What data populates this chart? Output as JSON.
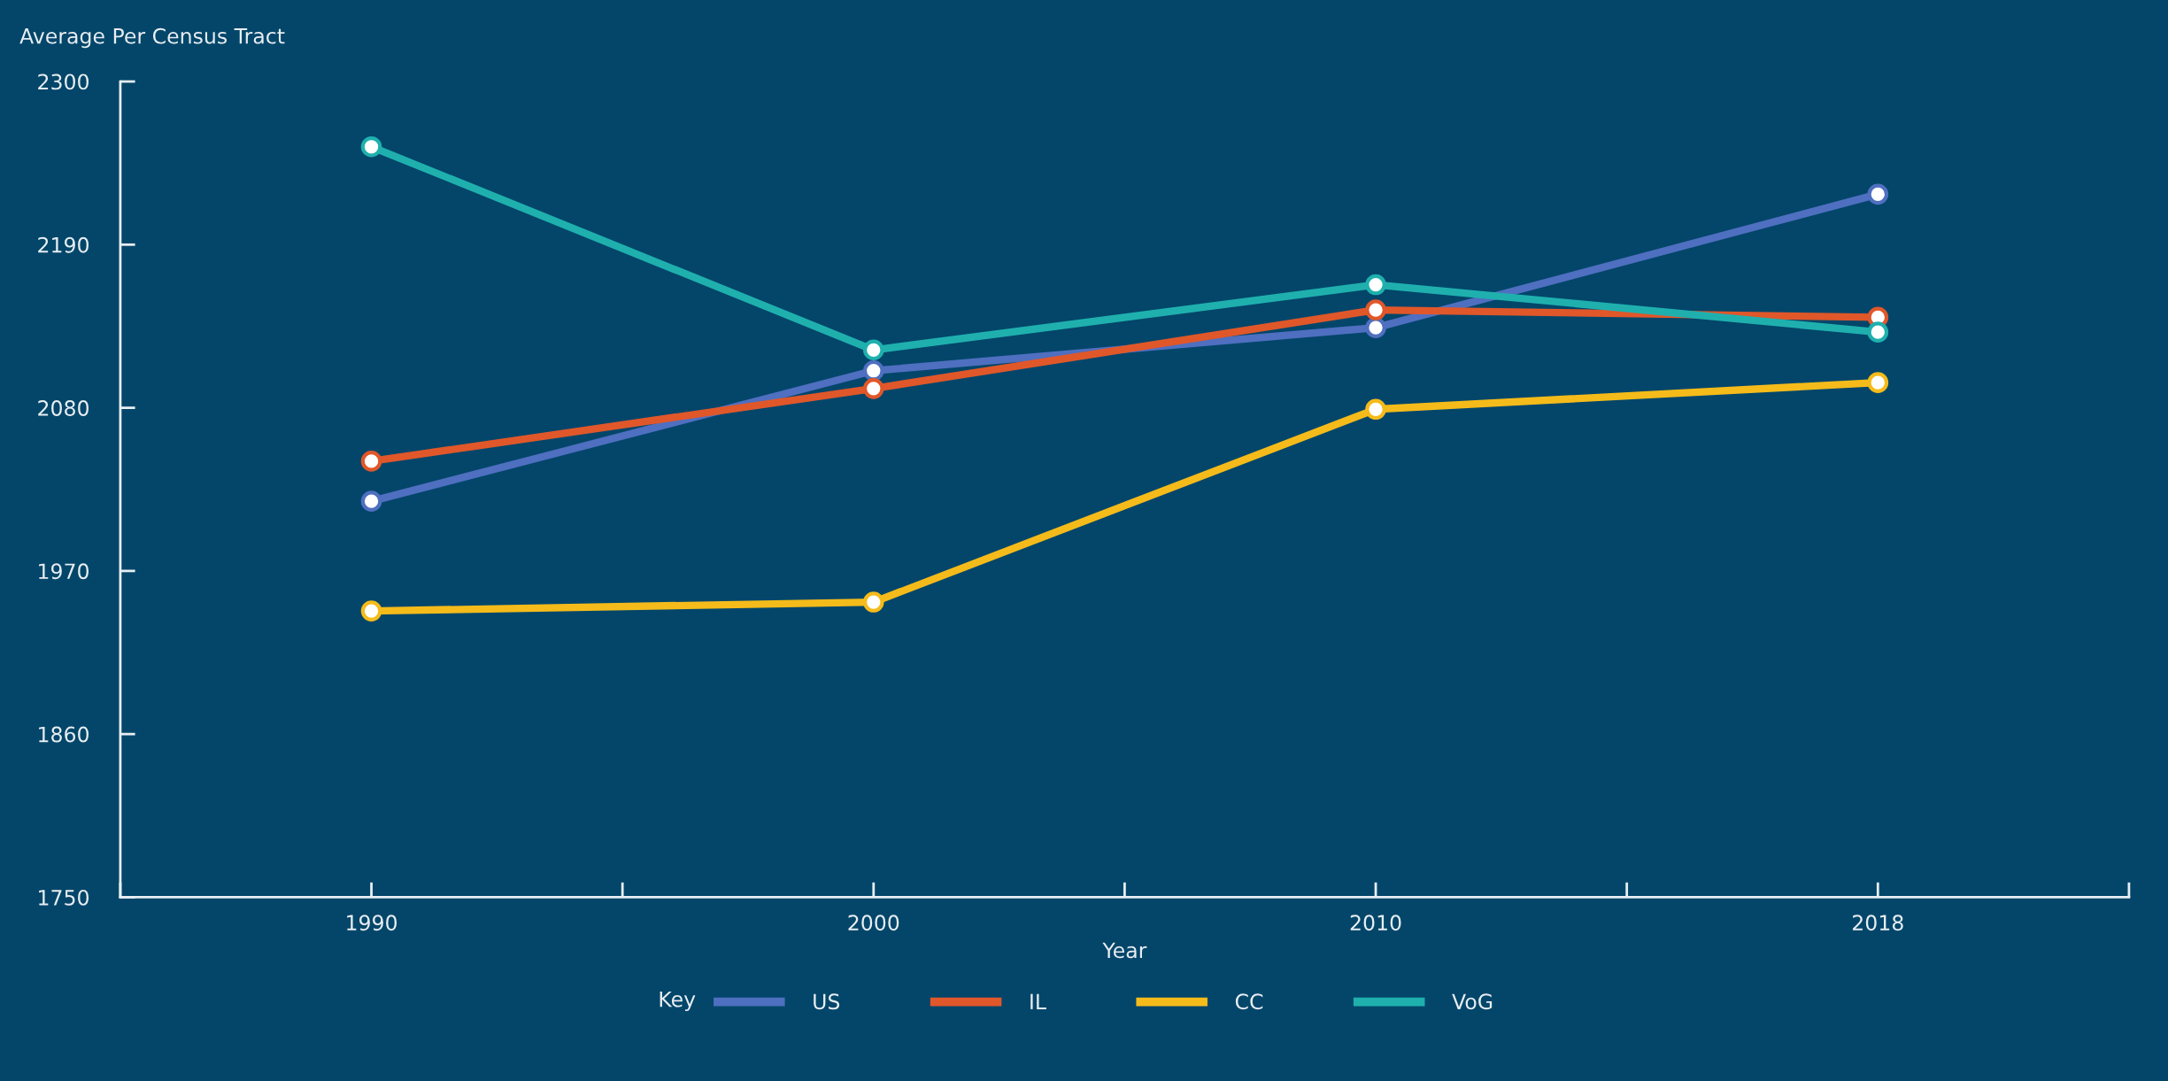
{
  "chart_data": {
    "type": "line",
    "ylabel": "Average Per Census Tract",
    "xlabel": "Year",
    "legend_title": "Key",
    "categories": [
      "1990",
      "2000",
      "2010",
      "2018"
    ],
    "series": [
      {
        "name": "US",
        "color": "#4f6fc0",
        "values": [
          2017,
          2105,
          2134,
          2224
        ]
      },
      {
        "name": "IL",
        "color": "#e0572a",
        "values": [
          2044,
          2093,
          2146,
          2141
        ]
      },
      {
        "name": "CC",
        "color": "#f5bb1a",
        "values": [
          1943,
          1949,
          2079,
          2097
        ]
      },
      {
        "name": "VoG",
        "color": "#1fb0ae",
        "values": [
          2256,
          2119,
          2163,
          2131
        ]
      }
    ],
    "ylim": [
      1750,
      2300
    ],
    "yticks": [
      1750,
      1860,
      1970,
      2080,
      2190,
      2300
    ],
    "grid": false,
    "legend": "bottom",
    "marker": "circle",
    "line_style": "solid"
  }
}
